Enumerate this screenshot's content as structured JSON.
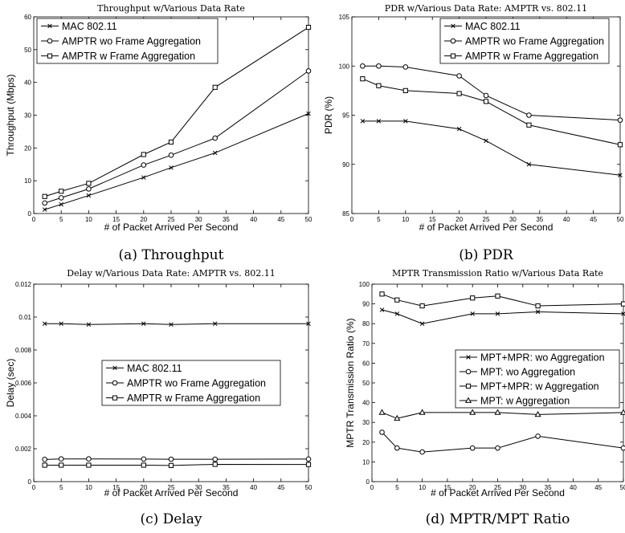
{
  "chart_data": [
    {
      "type": "line",
      "title": "Throughput w/Various Data Rate",
      "caption": "(a) Throughput",
      "xlabel": "# of Packet Arrived Per Second",
      "ylabel": "Throughput (Mbps)",
      "xlim": [
        0,
        50
      ],
      "ylim": [
        0,
        60
      ],
      "xticks": [
        0,
        5,
        10,
        15,
        20,
        25,
        30,
        35,
        40,
        45,
        50
      ],
      "yticks": [
        0,
        10,
        20,
        30,
        40,
        50,
        60
      ],
      "x": [
        2,
        5,
        10,
        20,
        25,
        33,
        50
      ],
      "grid": false,
      "legend_position": "top-left",
      "series": [
        {
          "name": "MAC 802.11",
          "marker": "x",
          "values": [
            1.2,
            2.8,
            5.5,
            11.0,
            14.0,
            18.5,
            30.5
          ]
        },
        {
          "name": "AMPTR wo Frame Aggregation",
          "marker": "circle",
          "values": [
            3.2,
            4.8,
            7.5,
            14.8,
            17.8,
            23.0,
            43.5
          ]
        },
        {
          "name": "AMPTR w Frame Aggregation",
          "marker": "square",
          "values": [
            5.2,
            6.8,
            9.2,
            18.0,
            21.8,
            38.5,
            56.8
          ]
        }
      ]
    },
    {
      "type": "line",
      "title": "PDR w/Various Data Rate: AMPTR vs. 802.11",
      "caption": "(b) PDR",
      "xlabel": "# of Packet Arrived Per Second",
      "ylabel": "PDR (%)",
      "xlim": [
        0,
        50
      ],
      "ylim": [
        85,
        105
      ],
      "xticks": [
        0,
        5,
        10,
        15,
        20,
        25,
        30,
        35,
        40,
        45,
        50
      ],
      "yticks": [
        85,
        90,
        95,
        100,
        105
      ],
      "x": [
        2,
        5,
        10,
        20,
        25,
        33,
        50
      ],
      "grid": false,
      "legend_position": "top-left",
      "series": [
        {
          "name": "MAC 802.11",
          "marker": "x",
          "values": [
            94.4,
            94.4,
            94.4,
            93.6,
            92.4,
            90.0,
            88.9
          ]
        },
        {
          "name": "AMPTR wo Frame Aggregation",
          "marker": "circle",
          "values": [
            100.0,
            100.0,
            99.9,
            99.0,
            97.0,
            95.0,
            94.5
          ]
        },
        {
          "name": "AMPTR w Frame Aggregation",
          "marker": "square",
          "values": [
            98.7,
            98.0,
            97.5,
            97.2,
            96.4,
            94.0,
            92.0
          ]
        }
      ]
    },
    {
      "type": "line",
      "title": "Delay w/Various Data Rate: AMPTR vs. 802.11",
      "caption": "(c) Delay",
      "xlabel": "# of Packet Arrived Per Second",
      "ylabel": "Delay (sec)",
      "xlim": [
        0,
        50
      ],
      "ylim": [
        0,
        0.012
      ],
      "xticks": [
        0,
        5,
        10,
        15,
        20,
        25,
        30,
        35,
        40,
        45,
        50
      ],
      "yticks": [
        0,
        0.002,
        0.004,
        0.006,
        0.008,
        0.01,
        0.012
      ],
      "x": [
        2,
        5,
        10,
        20,
        25,
        33,
        50
      ],
      "grid": false,
      "legend_position": "center-right",
      "series": [
        {
          "name": "MAC 802.11",
          "marker": "x",
          "values": [
            0.0096,
            0.0096,
            0.00955,
            0.0096,
            0.00955,
            0.0096,
            0.0096
          ]
        },
        {
          "name": "AMPTR wo Frame Aggregation",
          "marker": "circle",
          "values": [
            0.00135,
            0.00138,
            0.00138,
            0.00137,
            0.00136,
            0.00136,
            0.00137
          ]
        },
        {
          "name": "AMPTR w Frame Aggregation",
          "marker": "square",
          "values": [
            0.001,
            0.001,
            0.001,
            0.001,
            0.00098,
            0.00105,
            0.00104
          ]
        }
      ]
    },
    {
      "type": "line",
      "title": "MPTR Transmission Ratio w/Various Data Rate",
      "caption": "(d) MPTR/MPT Ratio",
      "xlabel": "# of Packet Arrived Per Second",
      "ylabel": "MPTR Transmission Ratio (%)",
      "xlim": [
        0,
        50
      ],
      "ylim": [
        0,
        100
      ],
      "xticks": [
        0,
        5,
        10,
        15,
        20,
        25,
        30,
        35,
        40,
        45,
        50
      ],
      "yticks": [
        0,
        10,
        20,
        30,
        40,
        50,
        60,
        70,
        80,
        90,
        100
      ],
      "x": [
        2,
        5,
        10,
        20,
        25,
        33,
        50
      ],
      "grid": false,
      "legend_position": "center-right",
      "series": [
        {
          "name": "MPT+MPR: wo Aggregation",
          "marker": "x",
          "values": [
            87,
            85,
            80,
            85,
            85,
            86,
            85
          ]
        },
        {
          "name": "MPT: wo Aggregation",
          "marker": "circle",
          "values": [
            25,
            17,
            15,
            17,
            17,
            23,
            17
          ]
        },
        {
          "name": "MPT+MPR: w Aggregation",
          "marker": "square",
          "values": [
            95,
            92,
            89,
            93,
            94,
            89,
            90
          ]
        },
        {
          "name": "MPT: w Aggregation",
          "marker": "triangle",
          "values": [
            35,
            32,
            35,
            35,
            35,
            34,
            35
          ]
        }
      ]
    }
  ]
}
